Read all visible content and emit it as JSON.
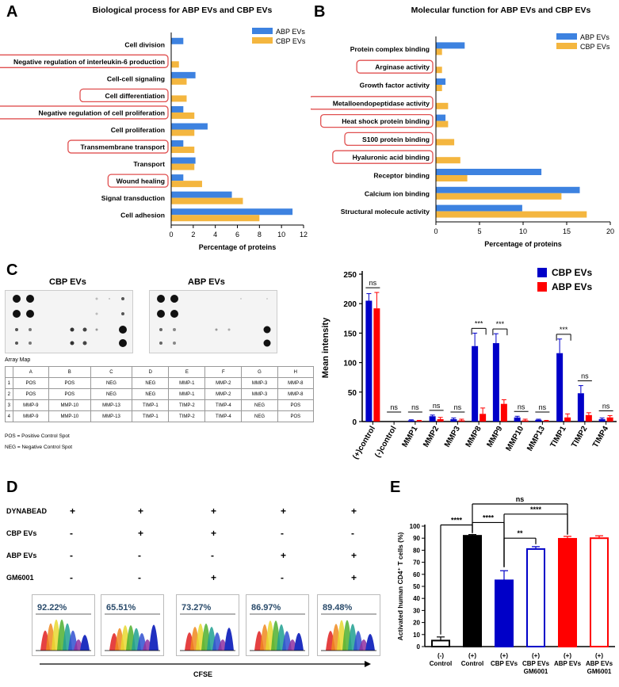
{
  "panels": {
    "A": "A",
    "B": "B",
    "C": "C",
    "D": "D",
    "E": "E"
  },
  "colors": {
    "blue": "#3d82e0",
    "orange": "#f4b63f",
    "darkblue": "#0000c8",
    "red": "#ff0000",
    "highlight": "#e05050"
  },
  "chart_data": [
    {
      "id": "A",
      "type": "bar",
      "orientation": "horizontal",
      "title": "Biological process for ABP EVs and CBP EVs",
      "xlabel": "Percentage of proteins",
      "xlim": [
        0,
        12
      ],
      "xticks": [
        "0",
        "2",
        "4",
        "6",
        "8",
        "10",
        "12"
      ],
      "categories": [
        "Cell division",
        "Negative regulation of interleukin-6 production",
        "Cell-cell signaling",
        "Cell differentiation",
        "Negative regulation of cell proliferation",
        "Cell proliferation",
        "Transmembrane transport",
        "Transport",
        "Wound healing",
        "Signal transduction",
        "Cell adhesion"
      ],
      "highlighted": [
        false,
        true,
        false,
        true,
        true,
        false,
        true,
        false,
        true,
        false,
        false
      ],
      "series": [
        {
          "name": "ABP EVs",
          "values": [
            1.1,
            0,
            2.2,
            0,
            1.1,
            3.3,
            1.1,
            2.2,
            1.1,
            5.5,
            11.0
          ]
        },
        {
          "name": "CBP EVs",
          "values": [
            0,
            0.7,
            1.4,
            1.4,
            2.1,
            2.1,
            2.1,
            2.1,
            2.8,
            6.5,
            8.0
          ]
        }
      ]
    },
    {
      "id": "B",
      "type": "bar",
      "orientation": "horizontal",
      "title": "Molecular function for ABP EVs and CBP EVs",
      "xlabel": "Percentage of proteins",
      "xlim": [
        0,
        20
      ],
      "xticks": [
        "0",
        "5",
        "10",
        "15",
        "20"
      ],
      "categories": [
        "Protein complex binding",
        "Arginase activity",
        "Growth factor activity",
        "Metalloendopeptidase activity",
        "Heat shock protein binding",
        "S100 protein binding",
        "Hyaluronic acid binding",
        "Receptor binding",
        "Calcium ion binding",
        "Structural molecule activity"
      ],
      "highlighted": [
        false,
        true,
        false,
        true,
        true,
        true,
        true,
        false,
        false,
        false
      ],
      "series": [
        {
          "name": "ABP EVs",
          "values": [
            3.3,
            0,
            1.1,
            0,
            1.1,
            0,
            0,
            12.1,
            16.5,
            9.9
          ]
        },
        {
          "name": "CBP EVs",
          "values": [
            0.7,
            0.7,
            0.7,
            1.4,
            1.4,
            2.1,
            2.8,
            3.6,
            14.4,
            17.3
          ]
        }
      ]
    },
    {
      "id": "C",
      "type": "bar",
      "ylabel": "Mean intensity",
      "ylim": [
        0,
        250
      ],
      "yticks": [
        "0",
        "50",
        "100",
        "150",
        "200",
        "250"
      ],
      "categories": [
        "(+)control",
        "(-)control",
        "MMP1",
        "MMP2",
        "MMP3",
        "MMP8",
        "MMP9",
        "MMP10",
        "MMP13",
        "TIMP1",
        "TIMP2",
        "TIMP4"
      ],
      "series": [
        {
          "name": "CBP EVs",
          "values": [
            205,
            0,
            2,
            9,
            4,
            128,
            133,
            7,
            3,
            116,
            48,
            4
          ],
          "errors": [
            12,
            0,
            1,
            2,
            2,
            22,
            16,
            2,
            1,
            24,
            13,
            2
          ]
        },
        {
          "name": "ABP EVs",
          "values": [
            192,
            0,
            1,
            4,
            2,
            13,
            30,
            2,
            1,
            7,
            11,
            7
          ],
          "errors": [
            27,
            0,
            1,
            3,
            2,
            10,
            7,
            2,
            1,
            6,
            4,
            3
          ]
        }
      ],
      "significance": [
        "ns",
        "ns",
        "ns",
        "ns",
        "ns",
        "***",
        "***",
        "ns",
        "ns",
        "***",
        "ns",
        "ns"
      ]
    },
    {
      "id": "E",
      "type": "bar",
      "ylabel": "Activated human CD4⁺ T cells (%)",
      "ylim": [
        0,
        100
      ],
      "yticks": [
        "0",
        "10",
        "20",
        "30",
        "40",
        "50",
        "60",
        "70",
        "80",
        "90",
        "100"
      ],
      "categories": [
        [
          "(-)",
          "Control"
        ],
        [
          "(+)",
          "Control"
        ],
        [
          "(+)",
          "CBP EVs"
        ],
        [
          "(+)",
          "CBP EVs",
          "GM6001"
        ],
        [
          "(+)",
          "ABP EVs"
        ],
        [
          "(+)",
          "ABP EVs",
          "GM6001"
        ]
      ],
      "values": [
        5,
        92,
        55,
        81,
        89.5,
        90
      ],
      "errors": [
        3,
        1,
        8,
        2,
        2,
        2
      ],
      "bar_fill": [
        "none",
        "#000000",
        "#0000c8",
        "none",
        "#ff0000",
        "none"
      ],
      "bar_stroke": [
        "#000000",
        "#000000",
        "#0000c8",
        "#0000c8",
        "#ff0000",
        "#ff0000"
      ],
      "comparisons": [
        {
          "from": 0,
          "to": 1,
          "label": "****"
        },
        {
          "from": 1,
          "to": 2,
          "label": "****"
        },
        {
          "from": 2,
          "to": 3,
          "label": "**"
        },
        {
          "from": 2,
          "to": 4,
          "label": "****"
        },
        {
          "from": 1,
          "to": 4,
          "label": "ns"
        }
      ]
    }
  ],
  "blot": {
    "cbp_label": "CBP EVs",
    "abp_label": "ABP EVs",
    "array_map_title": "Array Map",
    "columns": [
      "",
      "A",
      "B",
      "C",
      "D",
      "E",
      "F",
      "G",
      "H"
    ],
    "rows": [
      [
        "1",
        "POS",
        "POS",
        "NEG",
        "NEG",
        "MMP-1",
        "MMP-2",
        "MMP-3",
        "MMP-8"
      ],
      [
        "2",
        "POS",
        "POS",
        "NEG",
        "NEG",
        "MMP-1",
        "MMP-2",
        "MMP-3",
        "MMP-8"
      ],
      [
        "3",
        "MMP-9",
        "MMP-10",
        "MMP-13",
        "TIMP-1",
        "TIMP-2",
        "TIMP-4",
        "NEG",
        "POS"
      ],
      [
        "4",
        "MMP-9",
        "MMP-10",
        "MMP-13",
        "TIMP-1",
        "TIMP-2",
        "TIMP-4",
        "NEG",
        "POS"
      ]
    ],
    "pos_note": "POS = Positive Control Spot",
    "neg_note": "NEG = Negative Control Spot"
  },
  "panel_d": {
    "row_labels": [
      "DYNABEAD",
      "CBP EVs",
      "ABP EVs",
      "GM6001"
    ],
    "signs": [
      [
        "+",
        "+",
        "+",
        "+",
        "+"
      ],
      [
        "-",
        "+",
        "+",
        "-",
        "-"
      ],
      [
        "-",
        "-",
        "-",
        "+",
        "+"
      ],
      [
        "-",
        "-",
        "+",
        "-",
        "+"
      ]
    ],
    "percentages": [
      "92.22%",
      "65.51%",
      "73.27%",
      "86.97%",
      "89.48%"
    ],
    "xlabel": "CFSE"
  }
}
